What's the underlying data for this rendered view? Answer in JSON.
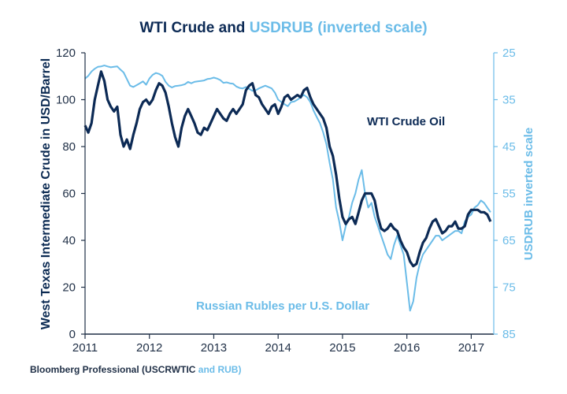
{
  "colors": {
    "wti": "#0c2a55",
    "rub": "#6bbce8",
    "axis": "#1f2f46",
    "background": "#ffffff"
  },
  "chart_data": {
    "type": "line",
    "title": {
      "part1": "WTI Crude and ",
      "part2": "USDRUB (inverted scale)"
    },
    "ylabel": "West Texas Intermediate Crude in USD/Barrel",
    "y2label": "USDRUB inverted scale",
    "ylim": [
      0,
      120
    ],
    "y2lim": [
      85,
      25
    ],
    "y2_inverted": true,
    "xlim": [
      2011,
      2017.35
    ],
    "x_ticks": [
      "2011",
      "2012",
      "2013",
      "2014",
      "2015",
      "2016",
      "2017"
    ],
    "y_ticks": [
      "0",
      "20",
      "40",
      "60",
      "80",
      "100",
      "120"
    ],
    "y2_ticks": [
      "25",
      "35",
      "45",
      "55",
      "65",
      "75",
      "85"
    ],
    "grid": false,
    "annotations": {
      "wti_label": "WTI Crude Oil",
      "rub_label": "Russian Rubles per U.S. Dollar"
    },
    "source": {
      "part1": "Bloomberg Professional (USCRWTIC ",
      "part2": "and RUB)"
    },
    "series": [
      {
        "name": "WTI Crude Oil",
        "axis": "left",
        "x": [
          2011.0,
          2011.05,
          2011.1,
          2011.15,
          2011.2,
          2011.25,
          2011.3,
          2011.35,
          2011.4,
          2011.45,
          2011.5,
          2011.55,
          2011.6,
          2011.65,
          2011.7,
          2011.75,
          2011.8,
          2011.85,
          2011.9,
          2011.95,
          2012.0,
          2012.05,
          2012.1,
          2012.15,
          2012.2,
          2012.25,
          2012.3,
          2012.35,
          2012.4,
          2012.45,
          2012.5,
          2012.55,
          2012.6,
          2012.65,
          2012.7,
          2012.75,
          2012.8,
          2012.85,
          2012.9,
          2012.95,
          2013.0,
          2013.05,
          2013.1,
          2013.15,
          2013.2,
          2013.25,
          2013.3,
          2013.35,
          2013.4,
          2013.45,
          2013.5,
          2013.55,
          2013.6,
          2013.65,
          2013.7,
          2013.75,
          2013.8,
          2013.85,
          2013.9,
          2013.95,
          2014.0,
          2014.05,
          2014.1,
          2014.15,
          2014.2,
          2014.25,
          2014.3,
          2014.35,
          2014.4,
          2014.45,
          2014.5,
          2014.55,
          2014.6,
          2014.65,
          2014.7,
          2014.75,
          2014.8,
          2014.85,
          2014.9,
          2014.95,
          2015.0,
          2015.05,
          2015.1,
          2015.15,
          2015.2,
          2015.25,
          2015.3,
          2015.35,
          2015.4,
          2015.45,
          2015.5,
          2015.55,
          2015.6,
          2015.65,
          2015.7,
          2015.75,
          2015.8,
          2015.85,
          2015.9,
          2015.95,
          2016.0,
          2016.05,
          2016.1,
          2016.15,
          2016.2,
          2016.25,
          2016.3,
          2016.35,
          2016.4,
          2016.45,
          2016.5,
          2016.55,
          2016.6,
          2016.65,
          2016.7,
          2016.75,
          2016.8,
          2016.85,
          2016.9,
          2016.95,
          2017.0,
          2017.05,
          2017.1,
          2017.15,
          2017.2,
          2017.25,
          2017.3
        ],
        "values": [
          89,
          86,
          90,
          100,
          106,
          112,
          108,
          100,
          97,
          95,
          97,
          85,
          80,
          83,
          79,
          85,
          90,
          96,
          99,
          100,
          98,
          100,
          104,
          107,
          106,
          103,
          97,
          90,
          84,
          80,
          88,
          93,
          96,
          93,
          90,
          86,
          85,
          88,
          87,
          90,
          93,
          96,
          94,
          92,
          91,
          94,
          96,
          94,
          96,
          98,
          104,
          106,
          107,
          102,
          101,
          98,
          96,
          94,
          97,
          98,
          94,
          97,
          101,
          102,
          100,
          101,
          102,
          101,
          104,
          105,
          101,
          98,
          96,
          94,
          92,
          88,
          80,
          76,
          68,
          58,
          50,
          47,
          49,
          50,
          47,
          52,
          57,
          60,
          60,
          60,
          57,
          50,
          45,
          44,
          45,
          47,
          45,
          44,
          40,
          37,
          35,
          31,
          29,
          30,
          35,
          39,
          41,
          45,
          48,
          49,
          46,
          43,
          44,
          46,
          46,
          48,
          45,
          45,
          46,
          51,
          53,
          53,
          53,
          52,
          52,
          51,
          48
        ]
      },
      {
        "name": "Russian Rubles per U.S. Dollar",
        "axis": "right",
        "x": [
          2011.0,
          2011.05,
          2011.1,
          2011.15,
          2011.2,
          2011.25,
          2011.3,
          2011.35,
          2011.4,
          2011.45,
          2011.5,
          2011.55,
          2011.6,
          2011.65,
          2011.7,
          2011.75,
          2011.8,
          2011.85,
          2011.9,
          2011.95,
          2012.0,
          2012.05,
          2012.1,
          2012.15,
          2012.2,
          2012.25,
          2012.3,
          2012.35,
          2012.4,
          2012.45,
          2012.5,
          2012.55,
          2012.6,
          2012.65,
          2012.7,
          2012.75,
          2012.8,
          2012.85,
          2012.9,
          2012.95,
          2013.0,
          2013.05,
          2013.1,
          2013.15,
          2013.2,
          2013.25,
          2013.3,
          2013.35,
          2013.4,
          2013.45,
          2013.5,
          2013.55,
          2013.6,
          2013.65,
          2013.7,
          2013.75,
          2013.8,
          2013.85,
          2013.9,
          2013.95,
          2014.0,
          2014.05,
          2014.1,
          2014.15,
          2014.2,
          2014.25,
          2014.3,
          2014.35,
          2014.4,
          2014.45,
          2014.5,
          2014.55,
          2014.6,
          2014.65,
          2014.7,
          2014.75,
          2014.8,
          2014.85,
          2014.9,
          2014.95,
          2015.0,
          2015.05,
          2015.1,
          2015.15,
          2015.2,
          2015.25,
          2015.3,
          2015.35,
          2015.4,
          2015.45,
          2015.5,
          2015.55,
          2015.6,
          2015.65,
          2015.7,
          2015.75,
          2015.8,
          2015.85,
          2015.9,
          2015.95,
          2016.0,
          2016.05,
          2016.1,
          2016.15,
          2016.2,
          2016.25,
          2016.3,
          2016.35,
          2016.4,
          2016.45,
          2016.5,
          2016.55,
          2016.6,
          2016.65,
          2016.7,
          2016.75,
          2016.8,
          2016.85,
          2016.9,
          2016.95,
          2017.0,
          2017.05,
          2017.1,
          2017.15,
          2017.2,
          2017.25,
          2017.3
        ],
        "values": [
          30.5,
          29.9,
          29.0,
          28.4,
          28.0,
          27.9,
          27.7,
          27.9,
          28.1,
          28.0,
          27.9,
          28.6,
          29.2,
          30.6,
          32.0,
          32.3,
          31.9,
          31.5,
          31.1,
          31.8,
          30.5,
          29.7,
          29.3,
          29.5,
          29.9,
          31.2,
          32.0,
          32.4,
          32.1,
          32.0,
          31.9,
          31.7,
          31.2,
          31.5,
          31.2,
          31.1,
          31.0,
          30.9,
          30.6,
          30.5,
          30.3,
          30.5,
          30.8,
          31.4,
          31.3,
          31.5,
          31.6,
          32.2,
          32.5,
          32.6,
          32.3,
          32.7,
          33.1,
          33.0,
          32.6,
          32.3,
          32.0,
          32.3,
          32.6,
          33.5,
          35.0,
          35.5,
          36.0,
          36.4,
          35.5,
          35.4,
          35.0,
          34.5,
          34.0,
          34.5,
          35.5,
          37.3,
          38.7,
          40.0,
          42.0,
          44.5,
          48.5,
          52.0,
          58.0,
          61.0,
          65.0,
          62.0,
          60.0,
          57.0,
          55.0,
          52.0,
          50.0,
          55.0,
          58.0,
          57.0,
          60.0,
          62.0,
          64.0,
          66.0,
          68.0,
          69.0,
          66.0,
          64.0,
          66.0,
          68.0,
          74.0,
          80.0,
          78.0,
          73.0,
          70.0,
          68.0,
          67.0,
          66.0,
          65.0,
          64.0,
          64.0,
          65.0,
          64.5,
          64.0,
          63.5,
          63.0,
          63.0,
          63.5,
          61.0,
          60.0,
          59.5,
          58.0,
          57.5,
          56.5,
          57.0,
          58.0,
          59.0
        ]
      }
    ]
  }
}
